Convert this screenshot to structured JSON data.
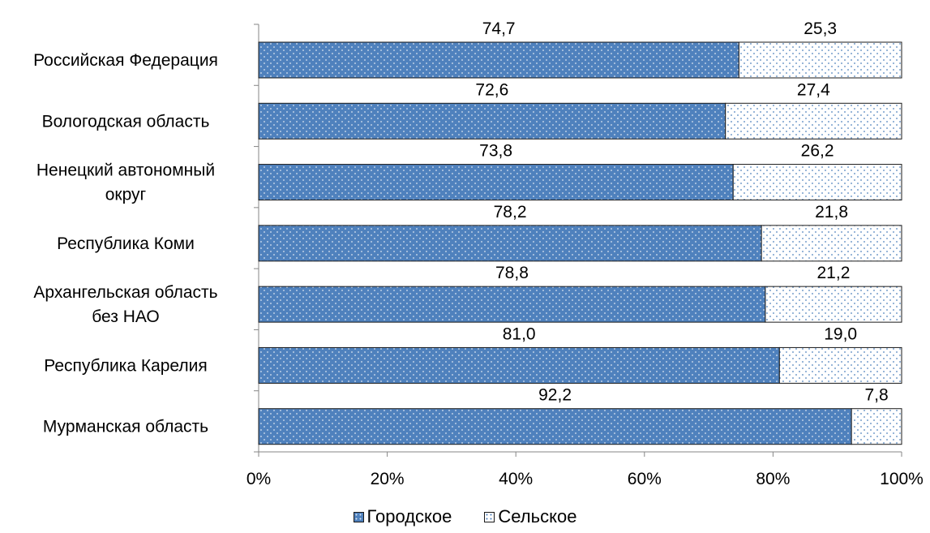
{
  "chart_data": {
    "type": "bar",
    "orientation": "horizontal",
    "stacked": true,
    "percent_stacked": true,
    "categories": [
      "Российская Федерация",
      "Вологодская область",
      "Ненецкий автономный округ",
      "Республика Коми",
      "Архангельская область без НАО",
      "Республика Карелия",
      "Мурманская область"
    ],
    "category_lines": [
      [
        "Российская Федерация"
      ],
      [
        "Вологодская область"
      ],
      [
        "Ненецкий автономный",
        "округ"
      ],
      [
        "Республика Коми"
      ],
      [
        "Архангельская область",
        "без НАО"
      ],
      [
        "Республика Карелия"
      ],
      [
        "Мурманская область"
      ]
    ],
    "series": [
      {
        "name": "Городское",
        "color": "#4f81bd",
        "values": [
          74.7,
          72.6,
          73.8,
          78.2,
          78.8,
          81.0,
          92.2
        ],
        "labels": [
          "74,7",
          "72,6",
          "73,8",
          "78,2",
          "78,8",
          "81,0",
          "92,2"
        ]
      },
      {
        "name": "Сельское",
        "color": "#ffffff",
        "values": [
          25.3,
          27.4,
          26.2,
          21.8,
          21.2,
          19.0,
          7.8
        ],
        "labels": [
          "25,3",
          "27,4",
          "26,2",
          "21,8",
          "21,2",
          "19,0",
          "7,8"
        ]
      }
    ],
    "x_ticks": [
      "0%",
      "20%",
      "40%",
      "60%",
      "80%",
      "100%"
    ],
    "xlim": [
      0,
      100
    ],
    "grid": false,
    "legend_position": "bottom",
    "title": "",
    "xlabel": "",
    "ylabel": ""
  }
}
